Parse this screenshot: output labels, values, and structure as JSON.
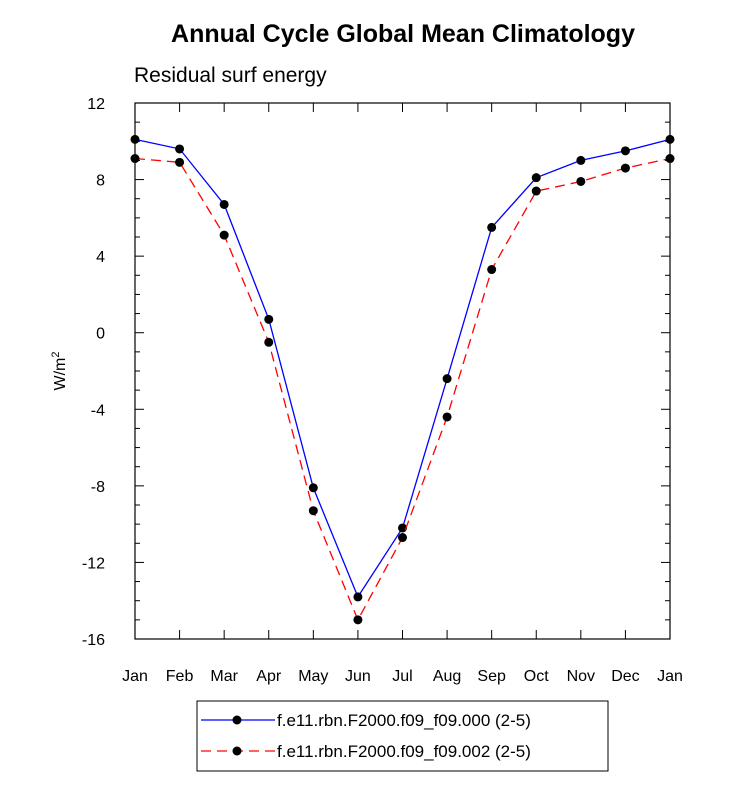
{
  "chart_data": {
    "type": "line",
    "title": "Annual Cycle Global Mean Climatology",
    "subtitle": "Residual surf energy",
    "ylabel": "W/m",
    "ylabel_sup": "2",
    "xlabel": "",
    "categories": [
      "Jan",
      "Feb",
      "Mar",
      "Apr",
      "May",
      "Jun",
      "Jul",
      "Aug",
      "Sep",
      "Oct",
      "Nov",
      "Dec",
      "Jan"
    ],
    "ylim": [
      -16,
      12
    ],
    "yticks": [
      -16,
      -12,
      -8,
      -4,
      0,
      4,
      8,
      12
    ],
    "ytick_labels": [
      "-16",
      "-12",
      "-8",
      "-4",
      "0",
      "4",
      "8",
      "12"
    ],
    "grid": false,
    "legend_position": "bottom-center",
    "series": [
      {
        "name": "f.e11.rbn.F2000.f09_f09.000 (2-5)",
        "color": "#0000ff",
        "dash": "solid",
        "marker": "circle",
        "values": [
          10.1,
          9.6,
          6.7,
          0.7,
          -8.1,
          -13.8,
          -10.2,
          -2.4,
          5.5,
          8.1,
          9.0,
          9.5,
          10.1
        ]
      },
      {
        "name": "f.e11.rbn.F2000.f09_f09.002 (2-5)",
        "color": "#ff0000",
        "dash": "dashed",
        "marker": "circle",
        "values": [
          9.1,
          8.9,
          5.1,
          -0.5,
          -9.3,
          -15.0,
          -10.7,
          -4.4,
          3.3,
          7.4,
          7.9,
          8.6,
          9.1
        ]
      }
    ]
  }
}
